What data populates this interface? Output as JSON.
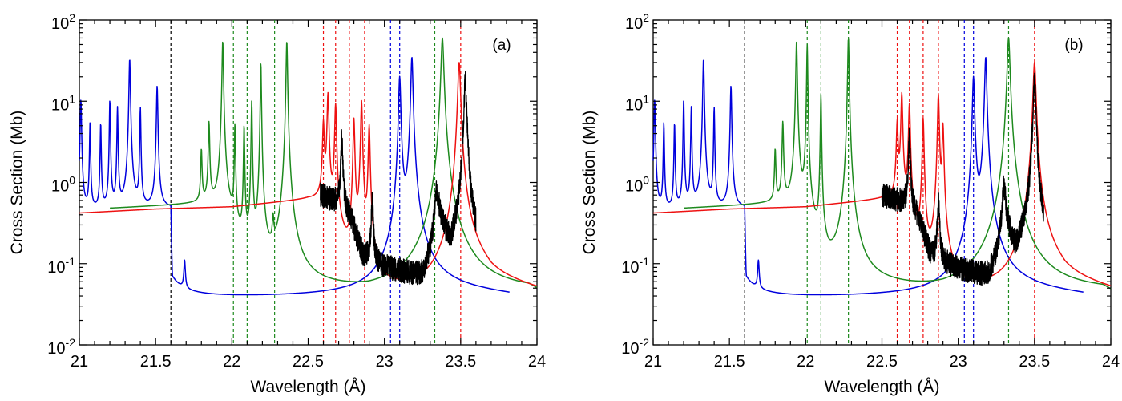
{
  "figure": {
    "panels": [
      "(a)",
      "(b)"
    ]
  },
  "colors": {
    "blue": "#0000dd",
    "green": "#1e8a1e",
    "red": "#ee1111",
    "black": "#000000"
  },
  "chart_data": [
    {
      "type": "line",
      "panel_label": "(a)",
      "xlabel": "Wavelength (Å)",
      "ylabel": "Cross Section (Mb)",
      "xlim": [
        21,
        24
      ],
      "ylim": [
        0.01,
        100
      ],
      "yscale": "log",
      "xticks": [
        "21",
        "21.5",
        "22",
        "22.5",
        "23",
        "23.5",
        "24"
      ],
      "yticks": [
        {
          "base": "10",
          "exp": "-2"
        },
        {
          "base": "10",
          "exp": "-1"
        },
        {
          "base": "10",
          "exp": "0"
        },
        {
          "base": "10",
          "exp": "1"
        },
        {
          "base": "10",
          "exp": "2"
        }
      ],
      "vlines": [
        {
          "x": 21.6,
          "color": "black"
        },
        {
          "x": 22.01,
          "color": "green"
        },
        {
          "x": 22.1,
          "color": "green"
        },
        {
          "x": 22.28,
          "color": "green"
        },
        {
          "x": 22.6,
          "color": "red"
        },
        {
          "x": 22.68,
          "color": "red"
        },
        {
          "x": 22.77,
          "color": "red"
        },
        {
          "x": 22.87,
          "color": "red"
        },
        {
          "x": 23.04,
          "color": "blue"
        },
        {
          "x": 23.1,
          "color": "blue"
        },
        {
          "x": 23.33,
          "color": "green"
        },
        {
          "x": 23.5,
          "color": "red"
        }
      ],
      "series": [
        {
          "name": "blue",
          "color": "blue",
          "x_range": [
            21.0,
            23.82
          ],
          "bg": [
            [
              21.0,
              0.45
            ],
            [
              21.6,
              0.48
            ],
            [
              21.61,
              0.036
            ],
            [
              22.3,
              0.038
            ],
            [
              22.9,
              0.04
            ],
            [
              23.3,
              0.05
            ],
            [
              23.82,
              0.04
            ]
          ],
          "peaks": [
            [
              21.01,
              10,
              0.004
            ],
            [
              21.07,
              5,
              0.003
            ],
            [
              21.14,
              5,
              0.003
            ],
            [
              21.2,
              10,
              0.003
            ],
            [
              21.25,
              8,
              0.003
            ],
            [
              21.33,
              33,
              0.004
            ],
            [
              21.4,
              8,
              0.003
            ],
            [
              21.51,
              15,
              0.004
            ],
            [
              21.69,
              0.06,
              0.005
            ],
            [
              23.1,
              20,
              0.006
            ],
            [
              23.18,
              35,
              0.006
            ]
          ]
        },
        {
          "name": "green",
          "color": "green",
          "x_range": [
            21.2,
            24.0
          ],
          "bg": [
            [
              21.2,
              0.48
            ],
            [
              21.85,
              0.55
            ],
            [
              22.0,
              0.3
            ],
            [
              22.1,
              0.1
            ],
            [
              22.15,
              0.06
            ],
            [
              22.4,
              0.05
            ],
            [
              22.9,
              0.04
            ],
            [
              23.5,
              0.045
            ],
            [
              23.95,
              0.045
            ],
            [
              24.0,
              0.04
            ]
          ],
          "peaks": [
            [
              21.8,
              2,
              0.004
            ],
            [
              21.85,
              5,
              0.004
            ],
            [
              21.94,
              55,
              0.004
            ],
            [
              22.02,
              5,
              0.003
            ],
            [
              22.08,
              5,
              0.003
            ],
            [
              22.13,
              10,
              0.003
            ],
            [
              22.19,
              30,
              0.003
            ],
            [
              22.27,
              0.2,
              0.005
            ],
            [
              22.36,
              55,
              0.004
            ],
            [
              23.38,
              60,
              0.008
            ]
          ]
        },
        {
          "name": "red",
          "color": "red",
          "x_range": [
            21.0,
            24.0
          ],
          "bg": [
            [
              21.0,
              0.42
            ],
            [
              21.5,
              0.47
            ],
            [
              22.0,
              0.5
            ],
            [
              22.5,
              0.62
            ],
            [
              22.62,
              0.6
            ],
            [
              22.68,
              0.3
            ],
            [
              22.8,
              0.06
            ],
            [
              23.0,
              0.04
            ],
            [
              23.3,
              0.04
            ],
            [
              23.42,
              0.045
            ],
            [
              23.55,
              0.1
            ],
            [
              23.7,
              0.06
            ],
            [
              24.0,
              0.045
            ]
          ],
          "peaks": [
            [
              22.6,
              5,
              0.005
            ],
            [
              22.63,
              12,
              0.005
            ],
            [
              22.68,
              9,
              0.005
            ],
            [
              22.8,
              6,
              0.005
            ],
            [
              22.85,
              10,
              0.005
            ],
            [
              22.9,
              5,
              0.005
            ],
            [
              23.49,
              30,
              0.008
            ]
          ]
        },
        {
          "name": "black",
          "color": "black",
          "x_range": [
            22.58,
            23.6
          ],
          "bg": [
            [
              22.58,
              0.7
            ],
            [
              22.7,
              0.55
            ],
            [
              22.78,
              0.35
            ],
            [
              22.86,
              0.12
            ],
            [
              22.98,
              0.09
            ],
            [
              23.15,
              0.07
            ],
            [
              23.25,
              0.06
            ],
            [
              23.3,
              0.12
            ],
            [
              23.36,
              0.4
            ],
            [
              23.44,
              0.1
            ],
            [
              23.5,
              0.2
            ],
            [
              23.56,
              0.15
            ],
            [
              23.6,
              0.12
            ]
          ],
          "peaks": [
            [
              22.72,
              3,
              0.006
            ],
            [
              22.92,
              0.5,
              0.006
            ],
            [
              23.34,
              0.5,
              0.01
            ],
            [
              23.53,
              17,
              0.008
            ]
          ],
          "noise": 0.15
        }
      ]
    },
    {
      "type": "line",
      "panel_label": "(b)",
      "xlabel": "Wavelength (Å)",
      "ylabel": "Cross Section (Mb)",
      "xlim": [
        21,
        24
      ],
      "ylim": [
        0.01,
        100
      ],
      "yscale": "log",
      "xticks": [
        "21",
        "21.5",
        "22",
        "22.5",
        "23",
        "23.5",
        "24"
      ],
      "yticks": [
        {
          "base": "10",
          "exp": "-2"
        },
        {
          "base": "10",
          "exp": "-1"
        },
        {
          "base": "10",
          "exp": "0"
        },
        {
          "base": "10",
          "exp": "1"
        },
        {
          "base": "10",
          "exp": "2"
        }
      ],
      "vlines": [
        {
          "x": 21.6,
          "color": "black"
        },
        {
          "x": 22.01,
          "color": "green"
        },
        {
          "x": 22.1,
          "color": "green"
        },
        {
          "x": 22.28,
          "color": "green"
        },
        {
          "x": 22.6,
          "color": "red"
        },
        {
          "x": 22.68,
          "color": "red"
        },
        {
          "x": 22.77,
          "color": "red"
        },
        {
          "x": 22.87,
          "color": "red"
        },
        {
          "x": 23.04,
          "color": "blue"
        },
        {
          "x": 23.1,
          "color": "blue"
        },
        {
          "x": 23.33,
          "color": "green"
        },
        {
          "x": 23.5,
          "color": "red"
        }
      ],
      "series": [
        {
          "name": "blue",
          "color": "blue",
          "x_range": [
            21.0,
            23.82
          ],
          "bg": [
            [
              21.0,
              0.45
            ],
            [
              21.6,
              0.48
            ],
            [
              21.61,
              0.036
            ],
            [
              22.3,
              0.038
            ],
            [
              22.9,
              0.04
            ],
            [
              23.3,
              0.05
            ],
            [
              23.82,
              0.04
            ]
          ],
          "peaks": [
            [
              21.01,
              10,
              0.004
            ],
            [
              21.07,
              5,
              0.003
            ],
            [
              21.14,
              5,
              0.003
            ],
            [
              21.2,
              10,
              0.003
            ],
            [
              21.25,
              8,
              0.003
            ],
            [
              21.33,
              33,
              0.004
            ],
            [
              21.4,
              8,
              0.003
            ],
            [
              21.51,
              15,
              0.004
            ],
            [
              21.69,
              0.06,
              0.005
            ],
            [
              23.1,
              20,
              0.006
            ],
            [
              23.18,
              35,
              0.006
            ]
          ]
        },
        {
          "name": "green",
          "color": "green",
          "x_range": [
            21.2,
            24.0
          ],
          "bg": [
            [
              21.2,
              0.48
            ],
            [
              21.85,
              0.55
            ],
            [
              22.0,
              0.3
            ],
            [
              22.1,
              0.1
            ],
            [
              22.15,
              0.06
            ],
            [
              22.4,
              0.05
            ],
            [
              22.9,
              0.04
            ],
            [
              23.5,
              0.045
            ],
            [
              23.95,
              0.045
            ],
            [
              24.0,
              0.04
            ]
          ],
          "peaks": [
            [
              21.8,
              2,
              0.004
            ],
            [
              21.85,
              5,
              0.004
            ],
            [
              21.94,
              55,
              0.004
            ],
            [
              22.01,
              50,
              0.003
            ],
            [
              22.1,
              12,
              0.003
            ],
            [
              22.28,
              60,
              0.004
            ],
            [
              23.33,
              60,
              0.008
            ]
          ]
        },
        {
          "name": "red",
          "color": "red",
          "x_range": [
            21.0,
            24.0
          ],
          "bg": [
            [
              21.0,
              0.42
            ],
            [
              21.5,
              0.47
            ],
            [
              22.0,
              0.5
            ],
            [
              22.5,
              0.62
            ],
            [
              22.62,
              0.6
            ],
            [
              22.68,
              0.3
            ],
            [
              22.8,
              0.06
            ],
            [
              23.0,
              0.04
            ],
            [
              23.3,
              0.04
            ],
            [
              23.42,
              0.045
            ],
            [
              23.55,
              0.1
            ],
            [
              23.7,
              0.06
            ],
            [
              24.0,
              0.045
            ]
          ],
          "peaks": [
            [
              22.6,
              5,
              0.005
            ],
            [
              22.63,
              12,
              0.005
            ],
            [
              22.68,
              9,
              0.005
            ],
            [
              22.77,
              6,
              0.005
            ],
            [
              22.87,
              12,
              0.005
            ],
            [
              22.9,
              5,
              0.005
            ],
            [
              23.5,
              30,
              0.008
            ]
          ]
        },
        {
          "name": "black",
          "color": "black",
          "x_range": [
            22.5,
            23.56
          ],
          "bg": [
            [
              22.5,
              0.7
            ],
            [
              22.65,
              0.55
            ],
            [
              22.74,
              0.35
            ],
            [
              22.82,
              0.12
            ],
            [
              22.95,
              0.09
            ],
            [
              23.1,
              0.07
            ],
            [
              23.2,
              0.06
            ],
            [
              23.26,
              0.12
            ],
            [
              23.3,
              0.4
            ],
            [
              23.38,
              0.1
            ],
            [
              23.45,
              0.2
            ],
            [
              23.52,
              0.15
            ],
            [
              23.56,
              0.12
            ]
          ],
          "peaks": [
            [
              22.68,
              3,
              0.006
            ],
            [
              22.87,
              0.5,
              0.006
            ],
            [
              23.3,
              0.5,
              0.01
            ],
            [
              23.5,
              17,
              0.008
            ]
          ],
          "noise": 0.15
        }
      ]
    }
  ]
}
